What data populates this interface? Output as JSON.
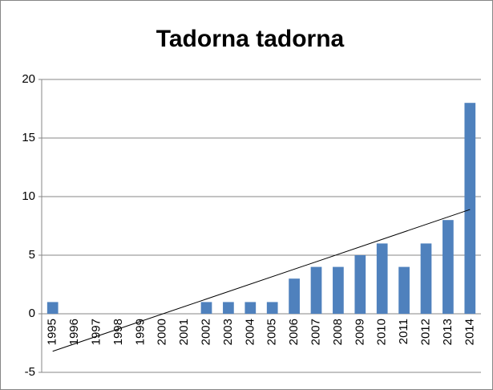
{
  "chart_data": {
    "type": "bar",
    "title": "Tadorna tadorna",
    "categories": [
      "1995",
      "1996",
      "1997",
      "1998",
      "1999",
      "2000",
      "2001",
      "2002",
      "2003",
      "2004",
      "2005",
      "2006",
      "2007",
      "2008",
      "2009",
      "2010",
      "2011",
      "2012",
      "2013",
      "2014"
    ],
    "values": [
      1,
      0,
      0,
      0,
      0,
      0,
      0,
      1,
      1,
      1,
      1,
      3,
      4,
      4,
      5,
      6,
      4,
      6,
      8,
      18
    ],
    "color": "#4f81bd",
    "trendline": {
      "color": "#000000",
      "values": [
        -3.2,
        8.9
      ]
    },
    "ylim": [
      -5,
      20
    ],
    "yticks": [
      -5,
      0,
      5,
      10,
      15,
      20
    ],
    "grid": true
  }
}
